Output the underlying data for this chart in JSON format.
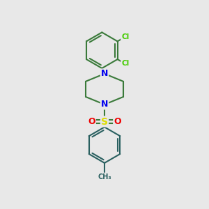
{
  "background_color": "#e8e8e8",
  "bond_color_green": "#3a7a3a",
  "bond_color_teal": "#2a6060",
  "bond_width": 1.5,
  "atom_colors": {
    "N": "#0000ee",
    "S": "#dddd00",
    "O": "#ee0000",
    "Cl": "#44cc00",
    "C_top": "#3a7a3a",
    "C_bot": "#2a6060"
  },
  "fig_width": 3.0,
  "fig_height": 3.0,
  "dpi": 100,
  "xlim": [
    0,
    10
  ],
  "ylim": [
    0,
    12
  ]
}
